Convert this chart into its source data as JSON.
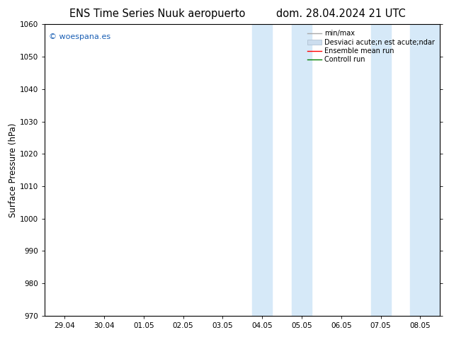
{
  "title_left": "ENS Time Series Nuuk aeropuerto",
  "title_right": "dom. 28.04.2024 21 UTC",
  "ylabel": "Surface Pressure (hPa)",
  "ylim": [
    970,
    1060
  ],
  "yticks": [
    970,
    980,
    990,
    1000,
    1010,
    1020,
    1030,
    1040,
    1050,
    1060
  ],
  "xtick_labels": [
    "29.04",
    "30.04",
    "01.05",
    "02.05",
    "03.05",
    "04.05",
    "05.05",
    "06.05",
    "07.05",
    "08.05"
  ],
  "xtick_positions": [
    0,
    1,
    2,
    3,
    4,
    5,
    6,
    7,
    8,
    9
  ],
  "shaded_bands": [
    {
      "xmin": 4.75,
      "xmax": 5.25
    },
    {
      "xmin": 5.75,
      "xmax": 6.25
    },
    {
      "xmin": 7.75,
      "xmax": 8.25
    },
    {
      "xmin": 8.75,
      "xmax": 9.5
    }
  ],
  "shade_color": "#d6e9f8",
  "background_color": "#ffffff",
  "watermark": "© woespana.es",
  "watermark_color": "#1a5fb4",
  "legend_label_1": "min/max",
  "legend_label_2": "Desviaci acute;n est acute;ndar",
  "legend_label_3": "Ensemble mean run",
  "legend_label_4": "Controll run",
  "title_fontsize": 10.5,
  "tick_fontsize": 7.5,
  "ylabel_fontsize": 8.5,
  "legend_fontsize": 7
}
